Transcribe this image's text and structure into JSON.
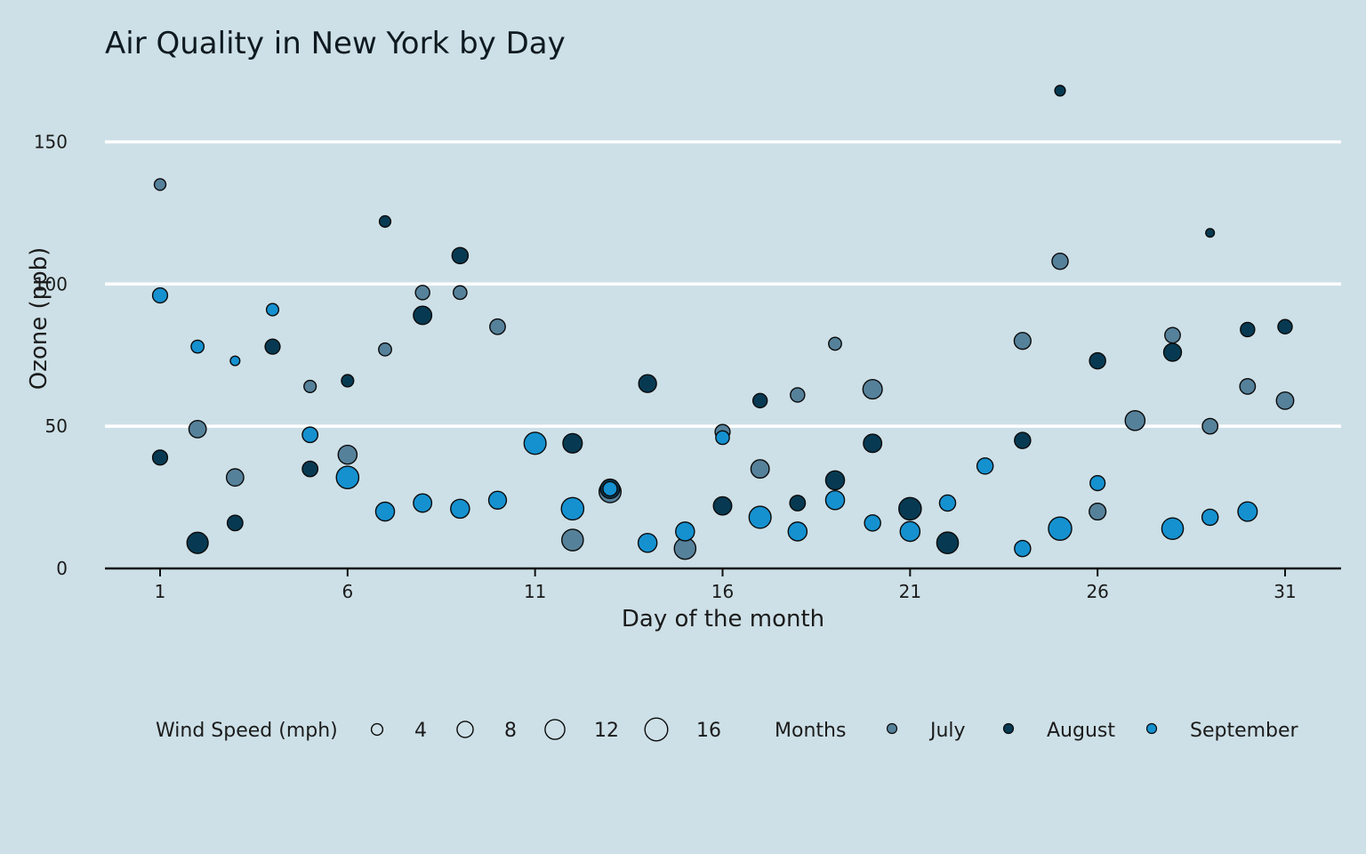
{
  "chart_data": {
    "type": "scatter",
    "title": "Air Quality in New York by Day",
    "xlabel": "Day of the month",
    "ylabel": "Ozone (ppb)",
    "xlim": [
      0,
      32.5
    ],
    "ylim": [
      0,
      168
    ],
    "x_ticks": [
      1,
      6,
      11,
      16,
      21,
      26,
      31
    ],
    "x_tick_labels": [
      "1",
      "6",
      "11",
      "16",
      "21",
      "26",
      "31"
    ],
    "y_ticks": [
      0,
      50,
      100,
      150
    ],
    "y_tick_labels": [
      "0",
      "50",
      "100",
      "150"
    ],
    "grid": "horizontal",
    "legend_position": "bottom",
    "size_legend": {
      "title": "Wind Speed (mph)",
      "entries": [
        {
          "label": "4",
          "value": 4
        },
        {
          "label": "8",
          "value": 8
        },
        {
          "label": "12",
          "value": 12
        },
        {
          "label": "16",
          "value": 16
        }
      ]
    },
    "color_legend": {
      "title": "Months",
      "entries": [
        {
          "label": "July",
          "color": "#56819a"
        },
        {
          "label": "August",
          "color": "#073a52"
        },
        {
          "label": "September",
          "color": "#1591d0"
        }
      ]
    },
    "series": [
      {
        "name": "July",
        "color": "#56819a",
        "points": [
          {
            "x": 1,
            "y": 135,
            "wind": 4.1
          },
          {
            "x": 2,
            "y": 49,
            "wind": 9.2
          },
          {
            "x": 3,
            "y": 32,
            "wind": 9.2
          },
          {
            "x": 5,
            "y": 64,
            "wind": 4.6
          },
          {
            "x": 6,
            "y": 40,
            "wind": 10.9
          },
          {
            "x": 7,
            "y": 77,
            "wind": 5.1
          },
          {
            "x": 8,
            "y": 97,
            "wind": 6.3
          },
          {
            "x": 9,
            "y": 97,
            "wind": 5.7
          },
          {
            "x": 10,
            "y": 85,
            "wind": 7.4
          },
          {
            "x": 12,
            "y": 10,
            "wind": 14.3
          },
          {
            "x": 13,
            "y": 27,
            "wind": 14.9
          },
          {
            "x": 15,
            "y": 7,
            "wind": 14.3
          },
          {
            "x": 16,
            "y": 48,
            "wind": 6.9
          },
          {
            "x": 17,
            "y": 35,
            "wind": 10.3
          },
          {
            "x": 18,
            "y": 61,
            "wind": 6.3
          },
          {
            "x": 19,
            "y": 79,
            "wind": 5.1
          },
          {
            "x": 20,
            "y": 63,
            "wind": 11.5
          },
          {
            "x": 24,
            "y": 80,
            "wind": 8.6
          },
          {
            "x": 25,
            "y": 108,
            "wind": 8.0
          },
          {
            "x": 26,
            "y": 20,
            "wind": 8.6
          },
          {
            "x": 27,
            "y": 52,
            "wind": 12.0
          },
          {
            "x": 28,
            "y": 82,
            "wind": 7.4
          },
          {
            "x": 29,
            "y": 50,
            "wind": 7.4
          },
          {
            "x": 30,
            "y": 64,
            "wind": 7.4
          },
          {
            "x": 31,
            "y": 59,
            "wind": 9.2
          }
        ]
      },
      {
        "name": "August",
        "color": "#073a52",
        "points": [
          {
            "x": 1,
            "y": 39,
            "wind": 6.9
          },
          {
            "x": 2,
            "y": 9,
            "wind": 13.8
          },
          {
            "x": 3,
            "y": 16,
            "wind": 7.4
          },
          {
            "x": 4,
            "y": 78,
            "wind": 6.9
          },
          {
            "x": 5,
            "y": 35,
            "wind": 7.4
          },
          {
            "x": 6,
            "y": 66,
            "wind": 4.6
          },
          {
            "x": 7,
            "y": 122,
            "wind": 4.0
          },
          {
            "x": 8,
            "y": 89,
            "wind": 10.3
          },
          {
            "x": 9,
            "y": 110,
            "wind": 8.0
          },
          {
            "x": 12,
            "y": 44,
            "wind": 11.5
          },
          {
            "x": 13,
            "y": 28,
            "wind": 11.5
          },
          {
            "x": 14,
            "y": 65,
            "wind": 9.7
          },
          {
            "x": 16,
            "y": 22,
            "wind": 10.3
          },
          {
            "x": 17,
            "y": 59,
            "wind": 6.3
          },
          {
            "x": 18,
            "y": 23,
            "wind": 7.4
          },
          {
            "x": 19,
            "y": 31,
            "wind": 10.9
          },
          {
            "x": 20,
            "y": 44,
            "wind": 10.3
          },
          {
            "x": 21,
            "y": 21,
            "wind": 15.5
          },
          {
            "x": 22,
            "y": 9,
            "wind": 14.3
          },
          {
            "x": 24,
            "y": 45,
            "wind": 8.0
          },
          {
            "x": 25,
            "y": 168,
            "wind": 3.4
          },
          {
            "x": 26,
            "y": 73,
            "wind": 8.0
          },
          {
            "x": 28,
            "y": 76,
            "wind": 9.7
          },
          {
            "x": 29,
            "y": 118,
            "wind": 2.3
          },
          {
            "x": 30,
            "y": 84,
            "wind": 6.3
          },
          {
            "x": 31,
            "y": 85,
            "wind": 6.3
          }
        ]
      },
      {
        "name": "September",
        "color": "#1591d0",
        "points": [
          {
            "x": 1,
            "y": 96,
            "wind": 6.9
          },
          {
            "x": 2,
            "y": 78,
            "wind": 5.1
          },
          {
            "x": 3,
            "y": 73,
            "wind": 2.8
          },
          {
            "x": 4,
            "y": 91,
            "wind": 4.6
          },
          {
            "x": 5,
            "y": 47,
            "wind": 7.4
          },
          {
            "x": 6,
            "y": 32,
            "wind": 15.5
          },
          {
            "x": 7,
            "y": 20,
            "wind": 10.9
          },
          {
            "x": 8,
            "y": 23,
            "wind": 10.3
          },
          {
            "x": 9,
            "y": 21,
            "wind": 10.9
          },
          {
            "x": 10,
            "y": 24,
            "wind": 9.7
          },
          {
            "x": 11,
            "y": 44,
            "wind": 14.9
          },
          {
            "x": 12,
            "y": 21,
            "wind": 15.5
          },
          {
            "x": 13,
            "y": 28,
            "wind": 6.3
          },
          {
            "x": 14,
            "y": 9,
            "wind": 10.9
          },
          {
            "x": 15,
            "y": 13,
            "wind": 10.9
          },
          {
            "x": 16,
            "y": 46,
            "wind": 5.7
          },
          {
            "x": 17,
            "y": 18,
            "wind": 14.9
          },
          {
            "x": 18,
            "y": 13,
            "wind": 10.9
          },
          {
            "x": 19,
            "y": 24,
            "wind": 10.9
          },
          {
            "x": 20,
            "y": 16,
            "wind": 8.0
          },
          {
            "x": 21,
            "y": 13,
            "wind": 12.0
          },
          {
            "x": 22,
            "y": 23,
            "wind": 8.0
          },
          {
            "x": 23,
            "y": 36,
            "wind": 8.0
          },
          {
            "x": 24,
            "y": 7,
            "wind": 8.0
          },
          {
            "x": 25,
            "y": 14,
            "wind": 16.6
          },
          {
            "x": 26,
            "y": 30,
            "wind": 6.9
          },
          {
            "x": 28,
            "y": 14,
            "wind": 14.3
          },
          {
            "x": 29,
            "y": 18,
            "wind": 8.0
          },
          {
            "x": 30,
            "y": 20,
            "wind": 11.5
          }
        ]
      }
    ]
  }
}
